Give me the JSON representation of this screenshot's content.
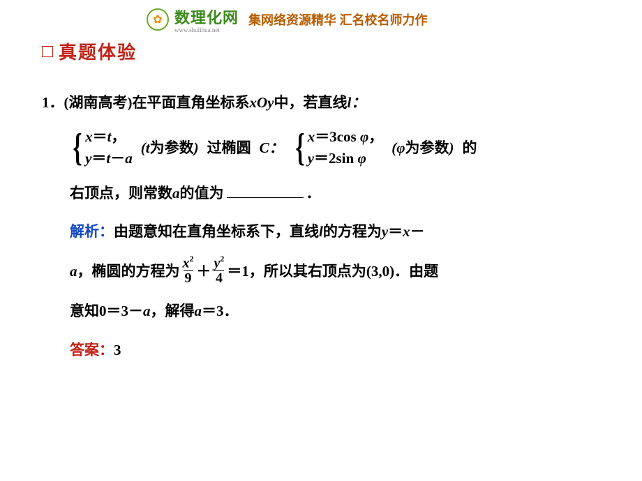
{
  "watermark": {
    "brand": "数理化网",
    "url": "www.shulihua.net",
    "tagline": "集网络资源精华 汇名校名师力作",
    "logo_glyph": "✿",
    "brand_color": "#3c8a1e",
    "tagline_color": "#b85c00"
  },
  "section": {
    "title": "真题体验",
    "title_color": "#c02418"
  },
  "problem": {
    "number": "1．",
    "source": "(湖南高考)",
    "text_part1": "在平面直角坐标系",
    "xoy": "xOy",
    "text_part2": "中，若直线",
    "l_colon": "l：",
    "line_sys": {
      "eq1_lhs": "x",
      "eq1_eq": "＝",
      "eq1_rhs": "t",
      "eq1_comma": "，",
      "eq2_lhs": "y",
      "eq2_eq": "＝",
      "eq2_rhs_a": "t",
      "eq2_minus": "－",
      "eq2_rhs_b": "a"
    },
    "t_param": "(t为参数)",
    "text_part3": "过椭圆",
    "C_colon": "C：",
    "ellipse_sys": {
      "eq1_lhs": "x",
      "eq1_eq": "＝",
      "eq1_coef": "3cos ",
      "eq1_var": "φ",
      "eq1_comma": "，",
      "eq2_lhs": "y",
      "eq2_eq": "＝",
      "eq2_coef": "2sin ",
      "eq2_var": "φ"
    },
    "phi_param": "(φ为参数)",
    "text_part4": "的",
    "text_part5": "右顶点，则常数",
    "a_var": "a",
    "text_part6": "的值为",
    "period": "．"
  },
  "analysis": {
    "label": "解析：",
    "s1_a": "由题意知在直角坐标系下，直线",
    "s1_l": "l",
    "s1_b": "的方程为",
    "s1_y": "y",
    "s1_eq": "＝",
    "s1_x": "x",
    "s1_minus": "－",
    "s2_a": "a",
    "s2_b": "，椭圆的方程为",
    "frac1_num_base": "x",
    "frac1_num_exp": "2",
    "frac1_den": "9",
    "plus": "＋",
    "frac2_num_base": "y",
    "frac2_num_exp": "2",
    "frac2_den": "4",
    "eq1": "＝1",
    "s2_c": "，所以其右顶点为",
    "vertex": "(3,0)",
    "s2_d": "．由题",
    "s3_a": "意知",
    "s3_eq": "0＝3－",
    "s3_var": "a",
    "s3_b": "，解得",
    "s3_var2": "a",
    "s3_c": "＝3．"
  },
  "answer": {
    "label": "答案：",
    "value": "3"
  },
  "styling": {
    "body_font_size": 21,
    "analysis_label_color": "#1248c4",
    "answer_label_color": "#c02418",
    "text_color": "#000000",
    "background": "#ffffff"
  }
}
